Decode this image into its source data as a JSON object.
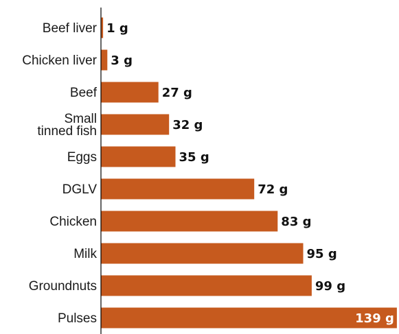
{
  "chart_data": {
    "type": "bar",
    "orientation": "horizontal",
    "title": "",
    "xlabel": "",
    "ylabel": "",
    "categories": [
      "Beef liver",
      "Chicken liver",
      "Beef",
      "Small tinned fish",
      "Eggs",
      "DGLV",
      "Chicken",
      "Milk",
      "Groundnuts",
      "Pulses"
    ],
    "category_lines": [
      [
        "Beef liver"
      ],
      [
        "Chicken liver"
      ],
      [
        "Beef"
      ],
      [
        "Small",
        "tinned fish"
      ],
      [
        "Eggs"
      ],
      [
        "DGLV"
      ],
      [
        "Chicken"
      ],
      [
        "Milk"
      ],
      [
        "Groundnuts"
      ],
      [
        "Pulses"
      ]
    ],
    "values": [
      1,
      3,
      27,
      32,
      35,
      72,
      83,
      95,
      99,
      139
    ],
    "value_labels": [
      "1 g",
      "3 g",
      "27 g",
      "32 g",
      "35 g",
      "72 g",
      "83 g",
      "95 g",
      "99 g",
      "139 g"
    ],
    "unit": "g",
    "xlim": [
      0,
      140
    ],
    "grid": false,
    "legend": "none",
    "colors": {
      "bar": "#c65a1e",
      "axis": "#000000",
      "label": "#1a1a1a",
      "value_label": "#111111",
      "value_label_inside": "#ffffff"
    }
  }
}
